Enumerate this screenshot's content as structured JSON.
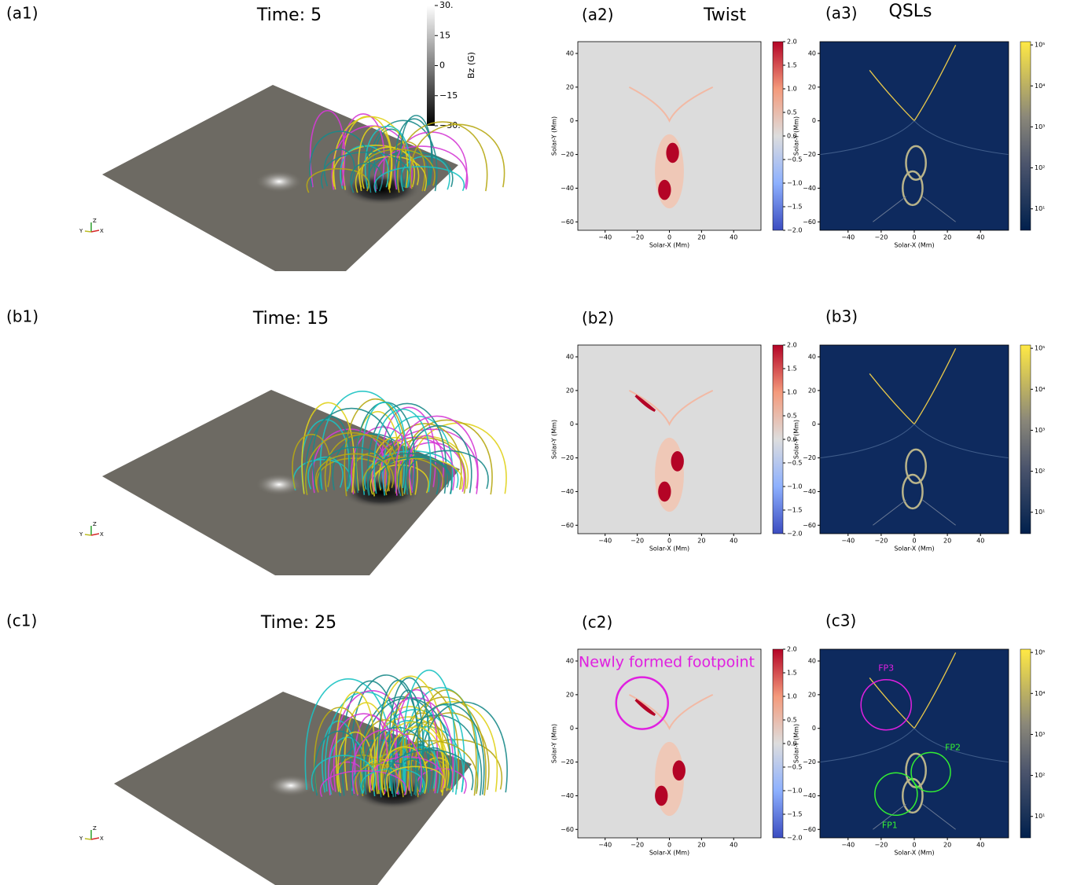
{
  "headers": {
    "twist": "Twist",
    "qsl": "QSLs"
  },
  "rows": [
    {
      "panel_3d": "(a1)",
      "time": "Time: 5",
      "twist_panel": "(a2)",
      "qsl_panel": "(a3)"
    },
    {
      "panel_3d": "(b1)",
      "time": "Time: 15",
      "twist_panel": "(b2)",
      "qsl_panel": "(b3)"
    },
    {
      "panel_3d": "(c1)",
      "time": "Time: 25",
      "twist_panel": "(c2)",
      "qsl_panel": "(c3)",
      "twist_annotation": "Newly formed footpoint",
      "qsl_annotations": [
        "FP3",
        "FP2",
        "FP1"
      ]
    }
  ],
  "bz_colorbar": {
    "title": "Bz (G)",
    "clim": [
      -30,
      30
    ],
    "ticks": [
      {
        "value": 30,
        "label": "30."
      },
      15,
      0,
      {
        "value": -15,
        "label": "−15"
      },
      {
        "value": -30,
        "label": "−30."
      }
    ]
  },
  "axes_3d": {
    "x": "X",
    "y": "Y",
    "z": "Z"
  },
  "map_axes": {
    "xlabel": "Solar-X (Mm)",
    "ylabel": "Solar-Y (Mm)",
    "xlim": [
      -57,
      57
    ],
    "ylim": [
      -65,
      47
    ],
    "xticks": [
      {
        "value": -40,
        "label": "−40"
      },
      {
        "value": -20,
        "label": "−20"
      },
      0,
      20,
      40
    ],
    "yticks": [
      40,
      20,
      0,
      {
        "value": -20,
        "label": "−20"
      },
      {
        "value": -40,
        "label": "−40"
      },
      {
        "value": -60,
        "label": "−60"
      }
    ]
  },
  "twist_colorbar": {
    "clim": [
      -2,
      2
    ],
    "ticks": [
      {
        "value": 2,
        "label": "2.0"
      },
      1.5,
      {
        "value": 1,
        "label": "1.0"
      },
      0.5,
      {
        "value": 0,
        "label": "0.0"
      },
      {
        "value": -0.5,
        "label": "−0.5"
      },
      {
        "value": -1,
        "label": "−1.0"
      },
      {
        "value": -1.5,
        "label": "−1.5"
      },
      {
        "value": -2,
        "label": "−2.0"
      }
    ]
  },
  "qsl_colorbar": {
    "clim": [
      3,
      120000
    ],
    "log": true,
    "ticks": [
      {
        "value": 100000,
        "label": "10⁵"
      },
      {
        "value": 10000,
        "label": "10⁴"
      },
      {
        "value": 1000,
        "label": "10³"
      },
      {
        "value": 100,
        "label": "10²"
      },
      {
        "value": 10,
        "label": "10¹"
      }
    ]
  }
}
